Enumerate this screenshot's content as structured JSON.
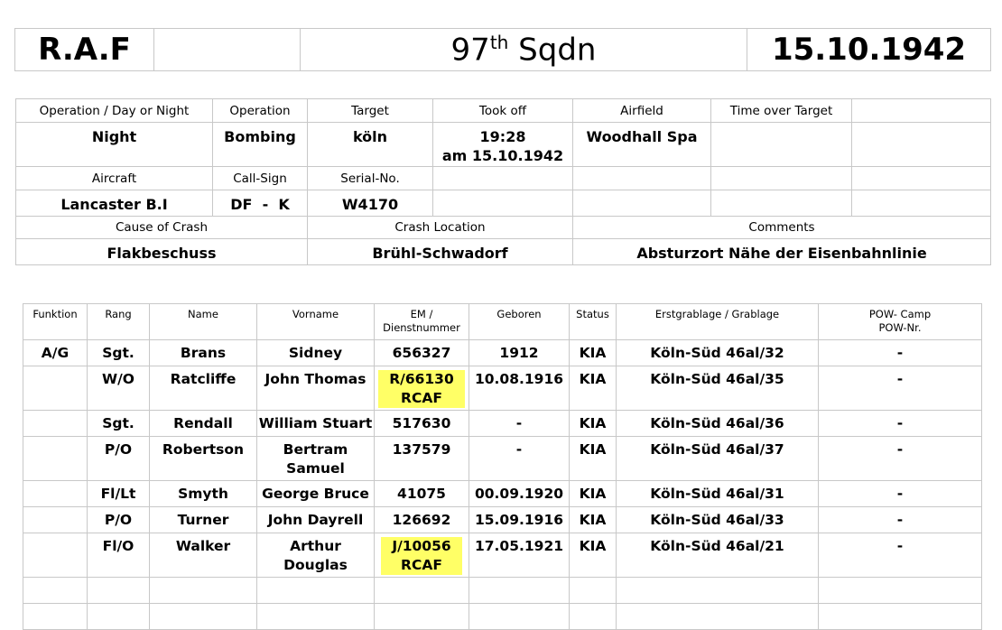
{
  "header": {
    "org": "R.A.F",
    "squadron_num": "97",
    "squadron_sup": "th",
    "squadron_unit": "Sqdn",
    "date": "15.10.1942"
  },
  "info": {
    "labels": {
      "op_day_night": "Operation / Day or Night",
      "operation": "Operation",
      "target": "Target",
      "took_off": "Took off",
      "airfield": "Airfield",
      "time_over_target": "Time over Target",
      "aircraft": "Aircraft",
      "call_sign": "Call-Sign",
      "serial_no": "Serial-No.",
      "cause": "Cause of Crash",
      "location": "Crash Location",
      "comments": "Comments"
    },
    "values": {
      "op_day_night": "Night",
      "operation": "Bombing",
      "target": "köln",
      "took_off_time": "19:28",
      "took_off_date": "am 15.10.1942",
      "airfield": "Woodhall Spa",
      "aircraft": "Lancaster B.I",
      "call_sign": "DF  -  K",
      "serial_no": "W4170",
      "cause": "Flakbeschuss",
      "location": "Brühl-Schwadorf",
      "comments": "Absturzort Nähe der Eisenbahnlinie"
    }
  },
  "crew": {
    "columns": [
      "Funktion",
      "Rang",
      "Name",
      "Vorname",
      "EM /",
      "Dienstnummer",
      "Geboren",
      "Status",
      "Erstgrablage / Grablage",
      "POW- Camp",
      "POW-Nr."
    ],
    "highlight_color": "#ffff66",
    "rows": [
      {
        "funktion": "A/G",
        "rang": "Sgt.",
        "name": "Brans",
        "vorname": [
          "Sidney"
        ],
        "nummer": [
          "656327"
        ],
        "highlight": false,
        "geboren": "1912",
        "status": "KIA",
        "grab": "Köln-Süd 46al/32",
        "pow": "-"
      },
      {
        "funktion": "",
        "rang": "W/O",
        "name": "Ratcliffe",
        "vorname": [
          "John Thomas"
        ],
        "nummer": [
          "R/66130",
          "RCAF"
        ],
        "highlight": true,
        "geboren": "10.08.1916",
        "status": "KIA",
        "grab": "Köln-Süd 46al/35",
        "pow": "-"
      },
      {
        "funktion": "",
        "rang": "Sgt.",
        "name": "Rendall",
        "vorname": [
          "William Stuart"
        ],
        "nummer": [
          "517630"
        ],
        "highlight": false,
        "geboren": "-",
        "status": "KIA",
        "grab": "Köln-Süd 46al/36",
        "pow": "-"
      },
      {
        "funktion": "",
        "rang": "P/O",
        "name": "Robertson",
        "vorname": [
          "Bertram",
          "Samuel"
        ],
        "nummer": [
          "137579"
        ],
        "highlight": false,
        "geboren": "-",
        "status": "KIA",
        "grab": "Köln-Süd 46al/37",
        "pow": "-"
      },
      {
        "funktion": "",
        "rang": "Fl/Lt",
        "name": "Smyth",
        "vorname": [
          "George Bruce"
        ],
        "nummer": [
          "41075"
        ],
        "highlight": false,
        "geboren": "00.09.1920",
        "status": "KIA",
        "grab": "Köln-Süd 46al/31",
        "pow": "-"
      },
      {
        "funktion": "",
        "rang": "P/O",
        "name": "Turner",
        "vorname": [
          "John Dayrell"
        ],
        "nummer": [
          "126692"
        ],
        "highlight": false,
        "geboren": "15.09.1916",
        "status": "KIA",
        "grab": "Köln-Süd 46al/33",
        "pow": "-"
      },
      {
        "funktion": "",
        "rang": "Fl/O",
        "name": "Walker",
        "vorname": [
          "Arthur",
          "Douglas"
        ],
        "nummer": [
          "J/10056",
          "RCAF"
        ],
        "highlight": true,
        "geboren": "17.05.1921",
        "status": "KIA",
        "grab": "Köln-Süd 46al/21",
        "pow": "-"
      }
    ]
  }
}
